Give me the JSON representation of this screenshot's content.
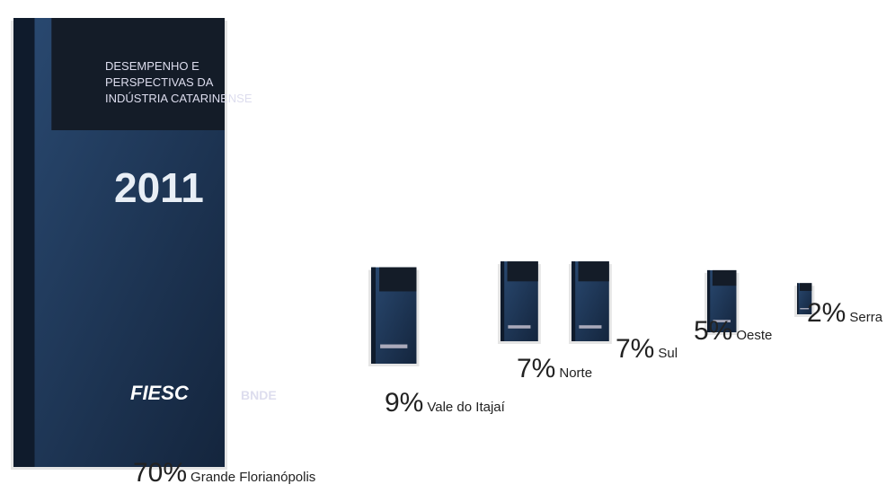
{
  "cover": {
    "title_lines": [
      "DESEMPENHO E",
      "PERSPECTIVAS DA",
      "INDÚSTRIA CATARINENSE"
    ],
    "year": "2011",
    "logo_left": "FIESC",
    "logo_right": "BNDE"
  },
  "chart_data": {
    "type": "pictograph",
    "categories": [
      "Grande Florianópolis",
      "Vale do Itajaí",
      "Norte",
      "Sul",
      "Oeste",
      "Serra"
    ],
    "values": [
      70,
      9,
      7,
      7,
      5,
      2
    ],
    "value_labels": [
      "70%",
      "9%",
      "7%",
      "7%",
      "5%",
      "2%"
    ],
    "color": "#1f3a5f"
  }
}
